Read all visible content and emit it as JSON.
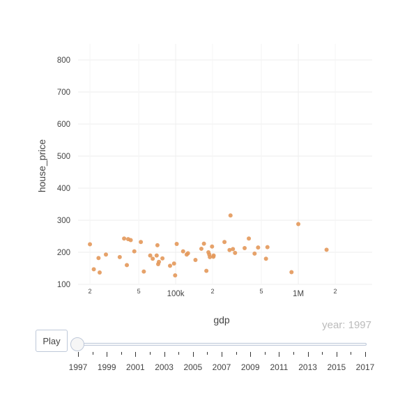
{
  "chart_data": {
    "type": "scatter",
    "xlabel": "gdp",
    "ylabel": "house_price",
    "x_scale": "log",
    "xlim": [
      16000,
      4000000
    ],
    "ylim": [
      100,
      850
    ],
    "x_major_ticks": [
      {
        "value": 100000,
        "label": "100k"
      },
      {
        "value": 1000000,
        "label": "1M"
      }
    ],
    "x_minor_ticks": [
      {
        "value": 20000,
        "label": "2"
      },
      {
        "value": 50000,
        "label": "5"
      },
      {
        "value": 200000,
        "label": "2"
      },
      {
        "value": 500000,
        "label": "5"
      },
      {
        "value": 2000000,
        "label": "2"
      }
    ],
    "y_ticks": [
      100,
      200,
      300,
      400,
      500,
      600,
      700,
      800
    ],
    "grid": true,
    "marker_color": "#e3985a",
    "points": [
      {
        "x": 20000,
        "y": 225
      },
      {
        "x": 21500,
        "y": 147
      },
      {
        "x": 23500,
        "y": 182
      },
      {
        "x": 24000,
        "y": 137
      },
      {
        "x": 27000,
        "y": 193
      },
      {
        "x": 35000,
        "y": 185
      },
      {
        "x": 38000,
        "y": 243
      },
      {
        "x": 40000,
        "y": 160
      },
      {
        "x": 41000,
        "y": 241
      },
      {
        "x": 43000,
        "y": 238
      },
      {
        "x": 46000,
        "y": 203
      },
      {
        "x": 52000,
        "y": 232
      },
      {
        "x": 55000,
        "y": 140
      },
      {
        "x": 62000,
        "y": 190
      },
      {
        "x": 65000,
        "y": 180
      },
      {
        "x": 70000,
        "y": 190
      },
      {
        "x": 71000,
        "y": 222
      },
      {
        "x": 72000,
        "y": 163
      },
      {
        "x": 73000,
        "y": 170
      },
      {
        "x": 78000,
        "y": 181
      },
      {
        "x": 90000,
        "y": 158
      },
      {
        "x": 97000,
        "y": 165
      },
      {
        "x": 99000,
        "y": 128
      },
      {
        "x": 102000,
        "y": 226
      },
      {
        "x": 115000,
        "y": 203
      },
      {
        "x": 123000,
        "y": 193
      },
      {
        "x": 126000,
        "y": 197
      },
      {
        "x": 145000,
        "y": 176
      },
      {
        "x": 162000,
        "y": 211
      },
      {
        "x": 170000,
        "y": 227
      },
      {
        "x": 178000,
        "y": 142
      },
      {
        "x": 185000,
        "y": 200
      },
      {
        "x": 188000,
        "y": 193
      },
      {
        "x": 190000,
        "y": 185
      },
      {
        "x": 198000,
        "y": 218
      },
      {
        "x": 203000,
        "y": 186
      },
      {
        "x": 204000,
        "y": 190
      },
      {
        "x": 250000,
        "y": 232
      },
      {
        "x": 275000,
        "y": 207
      },
      {
        "x": 280000,
        "y": 315
      },
      {
        "x": 293000,
        "y": 210
      },
      {
        "x": 305000,
        "y": 198
      },
      {
        "x": 365000,
        "y": 213
      },
      {
        "x": 395000,
        "y": 243
      },
      {
        "x": 440000,
        "y": 196
      },
      {
        "x": 470000,
        "y": 215
      },
      {
        "x": 545000,
        "y": 180
      },
      {
        "x": 560000,
        "y": 216
      },
      {
        "x": 880000,
        "y": 138
      },
      {
        "x": 1000000,
        "y": 288
      },
      {
        "x": 1700000,
        "y": 208
      }
    ]
  },
  "animation": {
    "play_label": "Play",
    "current_label": "year: 1997",
    "slider_labels": [
      "1997",
      "1999",
      "2001",
      "2003",
      "2005",
      "2007",
      "2009",
      "2011",
      "2013",
      "2015",
      "2017"
    ]
  }
}
